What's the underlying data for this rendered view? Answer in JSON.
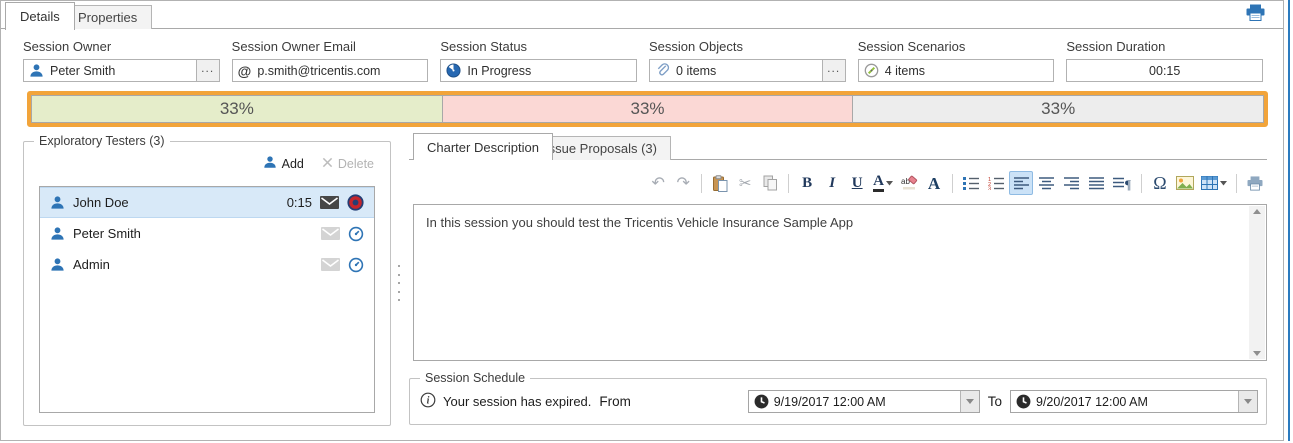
{
  "tabs": {
    "details": "Details",
    "properties": "Properties"
  },
  "fields": [
    {
      "label": "Session Owner",
      "value": "Peter Smith",
      "icon": "user-icon",
      "ellipsis": true,
      "center": false
    },
    {
      "label": "Session Owner Email",
      "value": "p.smith@tricentis.com",
      "icon": "at-icon",
      "ellipsis": false,
      "center": false
    },
    {
      "label": "Session Status",
      "value": "In Progress",
      "icon": "status-progress-icon",
      "ellipsis": false,
      "center": false
    },
    {
      "label": "Session Objects",
      "value": "0 items",
      "icon": "paperclip-icon",
      "ellipsis": true,
      "center": false
    },
    {
      "label": "Session Scenarios",
      "value": "4 items",
      "icon": "scenario-icon",
      "ellipsis": false,
      "center": false
    },
    {
      "label": "Session Duration",
      "value": "00:15",
      "icon": "",
      "ellipsis": false,
      "center": true
    }
  ],
  "progress": {
    "border_color": "#f2a43a",
    "segments": [
      {
        "text": "33%",
        "color": "#e5edca"
      },
      {
        "text": "33%",
        "color": "#fbd8d5"
      },
      {
        "text": "33%",
        "color": "#ededed"
      }
    ]
  },
  "testers": {
    "legend": "Exploratory Testers (3)",
    "add_label": "Add",
    "delete_label": "Delete",
    "rows": [
      {
        "name": "John Doe",
        "time": "0:15",
        "selected": true,
        "mail": "mail-active-icon",
        "timer": "record-icon"
      },
      {
        "name": "Peter Smith",
        "time": "",
        "selected": false,
        "mail": "mail-inactive-icon",
        "timer": "timer-icon"
      },
      {
        "name": "Admin",
        "time": "",
        "selected": false,
        "mail": "mail-inactive-icon",
        "timer": "timer-icon"
      }
    ]
  },
  "charter": {
    "tab_description": "Charter Description",
    "tab_issues": "Issue Proposals (3)",
    "text": "In this session you should test the Tricentis Vehicle Insurance Sample App",
    "toolbar": [
      {
        "icon": "undo-icon"
      },
      {
        "icon": "redo-icon"
      },
      {
        "sep": true
      },
      {
        "icon": "paste-icon"
      },
      {
        "icon": "cut-icon"
      },
      {
        "icon": "copy-icon"
      },
      {
        "sep": true
      },
      {
        "icon": "bold-icon"
      },
      {
        "icon": "italic-icon"
      },
      {
        "icon": "underline-icon"
      },
      {
        "icon": "font-color-icon",
        "caret": true
      },
      {
        "icon": "highlight-icon"
      },
      {
        "icon": "font-icon"
      },
      {
        "sep": true
      },
      {
        "icon": "bullet-list-icon"
      },
      {
        "icon": "numbered-list-icon"
      },
      {
        "icon": "align-left-icon",
        "active": true
      },
      {
        "icon": "align-center-icon"
      },
      {
        "icon": "align-right-icon"
      },
      {
        "icon": "justify-icon"
      },
      {
        "icon": "paragraph-icon"
      },
      {
        "sep": true
      },
      {
        "icon": "symbol-icon"
      },
      {
        "icon": "image-icon"
      },
      {
        "icon": "table-icon",
        "caret": true
      },
      {
        "sep": true
      },
      {
        "icon": "print-icon"
      }
    ]
  },
  "schedule": {
    "legend": "Session Schedule",
    "message": "Your session has expired.",
    "from_label": "From",
    "from_value": "9/19/2017 12:00 AM",
    "to_label": "To",
    "to_value": "9/20/2017 12:00 AM"
  }
}
